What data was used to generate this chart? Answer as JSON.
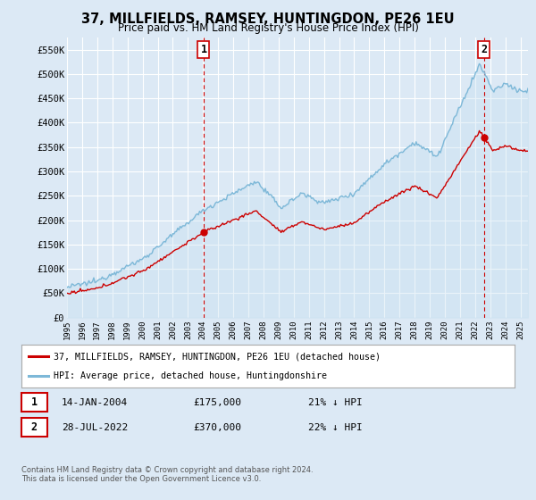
{
  "title": "37, MILLFIELDS, RAMSEY, HUNTINGDON, PE26 1EU",
  "subtitle": "Price paid vs. HM Land Registry's House Price Index (HPI)",
  "background_color": "#dce9f5",
  "grid_color": "#ffffff",
  "hpi_color": "#7db8d8",
  "hpi_fill_color": "#c5dff0",
  "price_color": "#cc0000",
  "vline_color": "#cc0000",
  "ylim": [
    0,
    575000
  ],
  "yticks": [
    0,
    50000,
    100000,
    150000,
    200000,
    250000,
    300000,
    350000,
    400000,
    450000,
    500000,
    550000
  ],
  "sale1_yr": 2004.04,
  "sale1_price": 175000,
  "sale2_yr": 2022.58,
  "sale2_price": 370000,
  "legend_line1": "37, MILLFIELDS, RAMSEY, HUNTINGDON, PE26 1EU (detached house)",
  "legend_line2": "HPI: Average price, detached house, Huntingdonshire",
  "table_row1_num": "1",
  "table_row1_date": "14-JAN-2004",
  "table_row1_price": "£175,000",
  "table_row1_hpi": "21% ↓ HPI",
  "table_row2_num": "2",
  "table_row2_date": "28-JUL-2022",
  "table_row2_price": "£370,000",
  "table_row2_hpi": "22% ↓ HPI",
  "footnote_line1": "Contains HM Land Registry data © Crown copyright and database right 2024.",
  "footnote_line2": "This data is licensed under the Open Government Licence v3.0."
}
